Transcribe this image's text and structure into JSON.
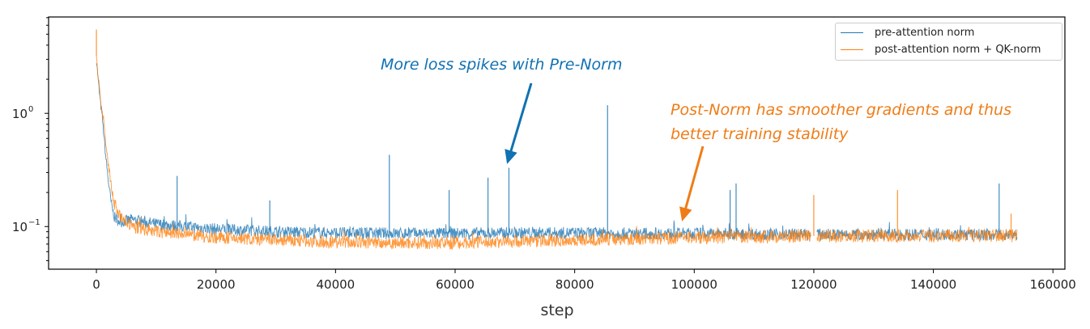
{
  "chart_data": {
    "type": "line",
    "xlabel": "step",
    "ylabel": "",
    "yscale": "log",
    "xlim": [
      -8000,
      162000
    ],
    "ylim": [
      0.042,
      7.1
    ],
    "xticks": [
      0,
      20000,
      40000,
      60000,
      80000,
      100000,
      120000,
      140000,
      160000
    ],
    "yticks": [
      {
        "value": 1,
        "label": "10",
        "exp": "0"
      },
      {
        "value": 0.1,
        "label": "10",
        "exp": "−1"
      }
    ],
    "grid": false,
    "legend_position": "top-right",
    "series": [
      {
        "name": "pre-attention norm",
        "color": "#1f77b4",
        "x": [
          0,
          500,
          1000,
          1500,
          2000,
          2500,
          3000,
          4000,
          6000,
          10000,
          15000,
          20000,
          30000,
          40000,
          50000,
          60000,
          70000,
          80000,
          90000,
          100000,
          110000,
          119500,
          120500,
          130000,
          140000,
          150000,
          154000
        ],
        "y": [
          3.0,
          1.5,
          0.9,
          0.45,
          0.25,
          0.16,
          0.12,
          0.11,
          0.115,
          0.105,
          0.1,
          0.095,
          0.09,
          0.088,
          0.087,
          0.087,
          0.088,
          0.088,
          0.087,
          0.087,
          0.086,
          0.085,
          0.085,
          0.085,
          0.085,
          0.085,
          0.085
        ],
        "spikes": [
          [
            13500,
            0.28
          ],
          [
            29000,
            0.17
          ],
          [
            49000,
            0.43
          ],
          [
            59000,
            0.21
          ],
          [
            65500,
            0.27
          ],
          [
            69000,
            0.33
          ],
          [
            85500,
            1.18
          ],
          [
            106000,
            0.21
          ],
          [
            107000,
            0.24
          ],
          [
            151000,
            0.24
          ]
        ]
      },
      {
        "name": "post-attention norm +  QK-norm",
        "color": "#ff7f0e",
        "x": [
          0,
          500,
          1000,
          1500,
          2000,
          2500,
          3000,
          4000,
          6000,
          10000,
          15000,
          20000,
          30000,
          40000,
          50000,
          60000,
          70000,
          80000,
          90000,
          100000,
          110000,
          119500,
          120500,
          130000,
          140000,
          150000,
          154000
        ],
        "y": [
          3.2,
          1.6,
          1.0,
          0.6,
          0.35,
          0.22,
          0.16,
          0.12,
          0.1,
          0.09,
          0.085,
          0.08,
          0.076,
          0.073,
          0.072,
          0.072,
          0.074,
          0.076,
          0.078,
          0.08,
          0.081,
          0.082,
          0.083,
          0.083,
          0.083,
          0.083,
          0.083
        ],
        "spikes": [
          [
            0,
            5.5
          ],
          [
            120000,
            0.19
          ],
          [
            134000,
            0.21
          ],
          [
            153000,
            0.13
          ]
        ]
      }
    ],
    "annotations": [
      {
        "text": "More loss spikes with Pre-Norm",
        "color": "#1071b3",
        "arrow_to": [
          69000,
          0.33
        ]
      },
      {
        "text": "Post-Norm has smoother gradients and thus",
        "text2": "better training stability",
        "color": "#ef7c17",
        "arrow_to": [
          98000,
          0.11
        ]
      }
    ]
  }
}
